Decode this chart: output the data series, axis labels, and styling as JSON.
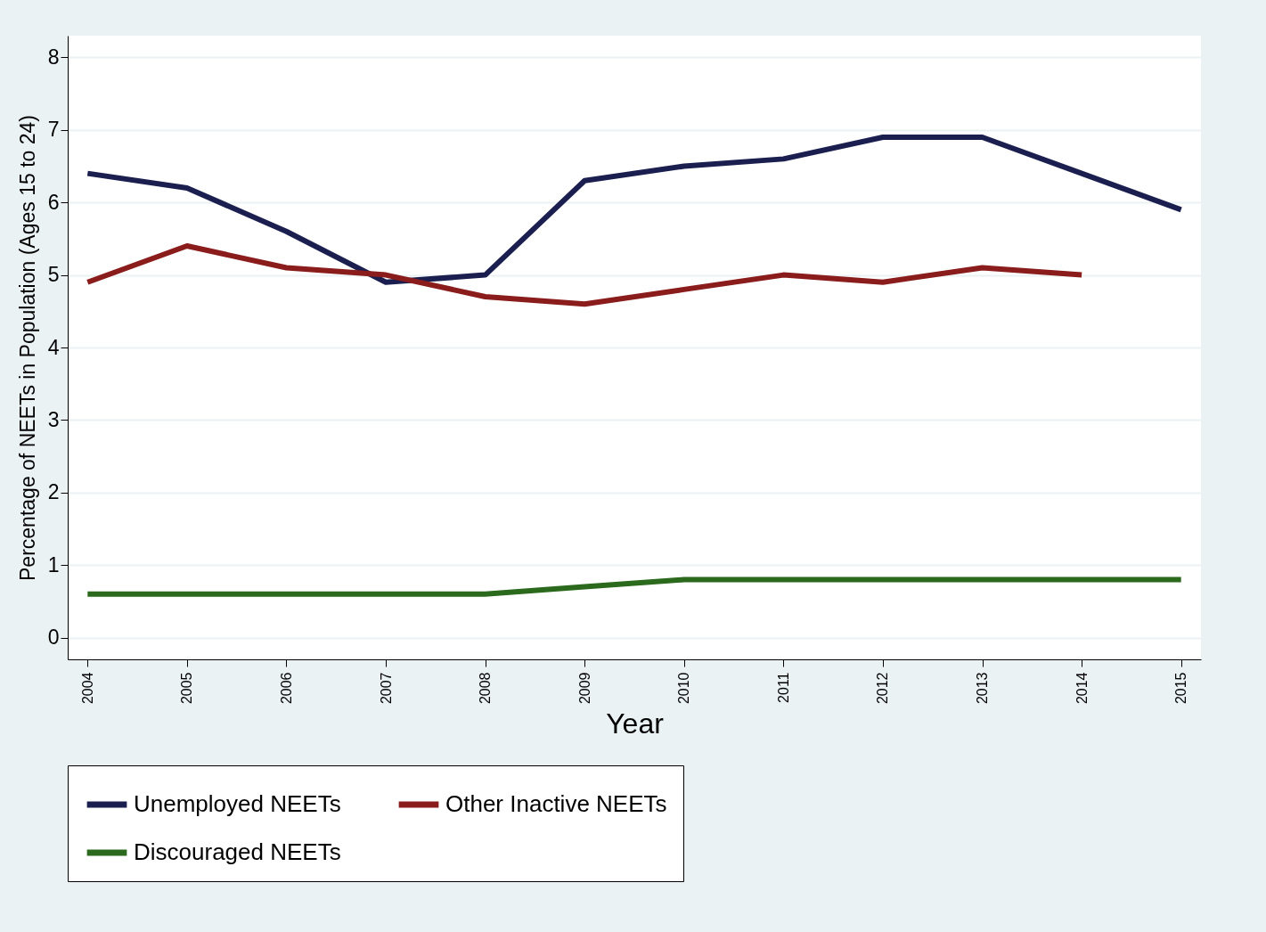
{
  "chart_data": {
    "type": "line",
    "xlabel": "Year",
    "ylabel": "Percentage of NEETs in Population (Ages 15 to 24)",
    "x": [
      2004,
      2005,
      2006,
      2007,
      2008,
      2009,
      2010,
      2011,
      2012,
      2013,
      2014,
      2015
    ],
    "xlim": [
      2003.8,
      2015.2
    ],
    "xticks": [
      2004,
      2005,
      2006,
      2007,
      2008,
      2009,
      2010,
      2011,
      2012,
      2013,
      2014,
      2015
    ],
    "ylim": [
      -0.3,
      8.3
    ],
    "yticks": [
      0,
      1,
      2,
      3,
      4,
      5,
      6,
      7,
      8
    ],
    "grid": "y",
    "legend": "bottom",
    "line_style": "solid",
    "series": [
      {
        "name": "Unemployed NEETs",
        "color": "#1b1f4f",
        "values": [
          6.4,
          6.2,
          5.6,
          4.9,
          5.0,
          6.3,
          6.5,
          6.6,
          6.9,
          6.9,
          6.4,
          5.9
        ]
      },
      {
        "name": "Other Inactive NEETs",
        "color": "#8a1c1c",
        "values": [
          4.9,
          5.4,
          5.1,
          5.0,
          4.7,
          4.6,
          4.8,
          5.0,
          4.9,
          5.1,
          5.0,
          null
        ]
      },
      {
        "name": "Discouraged NEETs",
        "color": "#2b6a1c",
        "values": [
          0.6,
          0.6,
          0.6,
          0.6,
          0.6,
          0.7,
          0.8,
          0.8,
          0.8,
          0.8,
          0.8,
          0.8
        ]
      }
    ]
  }
}
